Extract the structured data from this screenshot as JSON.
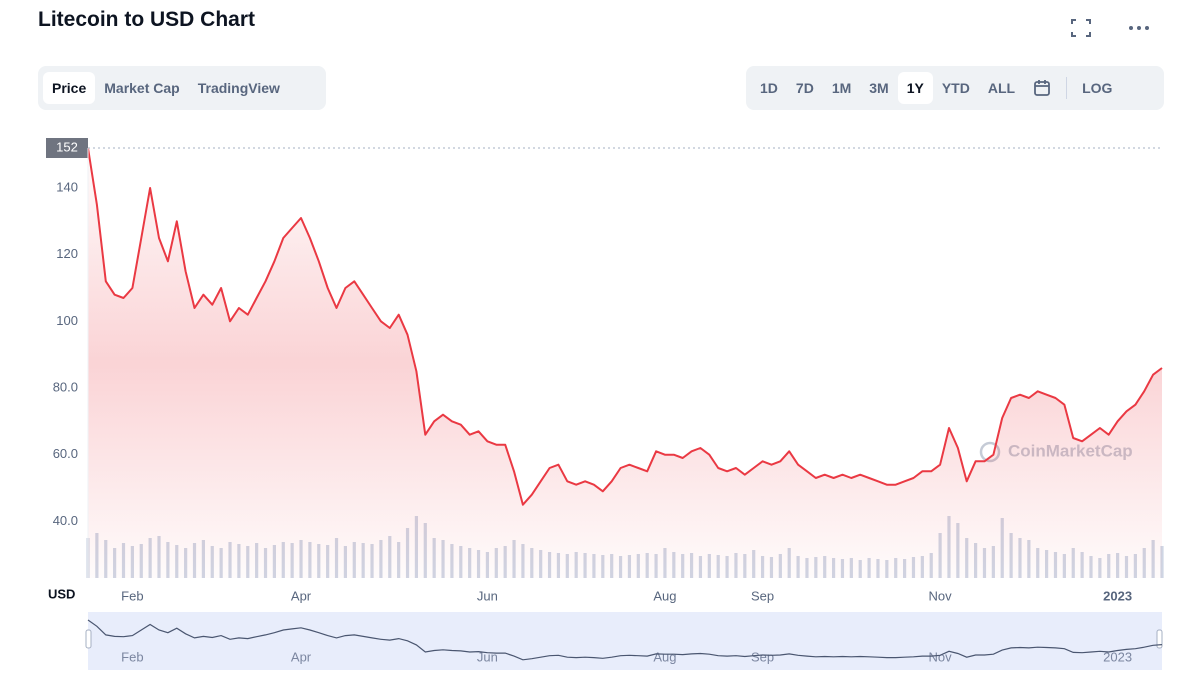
{
  "header": {
    "title": "Litecoin to USD Chart"
  },
  "tabs": [
    "Price",
    "Market Cap",
    "TradingView"
  ],
  "active_tab": 0,
  "ranges": [
    "1D",
    "7D",
    "1M",
    "3M",
    "1Y",
    "YTD",
    "ALL"
  ],
  "active_range": 4,
  "log_button": "LOG",
  "watermark": "CoinMarketCap",
  "chart_data": {
    "type": "line",
    "y_unit_label": "USD",
    "price_marker": 152,
    "ylim": [
      23,
      152
    ],
    "yticks": [
      {
        "value": 40,
        "label": "40.0"
      },
      {
        "value": 60,
        "label": "60.0"
      },
      {
        "value": 80,
        "label": "80.0"
      },
      100,
      120,
      140
    ],
    "categories": [
      null,
      null,
      null,
      null,
      null,
      "Feb",
      null,
      null,
      null,
      null,
      null,
      null,
      null,
      null,
      null,
      null,
      null,
      null,
      null,
      null,
      null,
      null,
      null,
      null,
      "Apr",
      null,
      null,
      null,
      null,
      null,
      null,
      null,
      null,
      null,
      null,
      null,
      null,
      null,
      null,
      null,
      null,
      null,
      null,
      null,
      null,
      "Jun",
      null,
      null,
      null,
      null,
      null,
      null,
      null,
      null,
      null,
      null,
      null,
      null,
      null,
      null,
      null,
      null,
      null,
      null,
      null,
      "Aug",
      null,
      null,
      null,
      null,
      null,
      null,
      null,
      null,
      null,
      null,
      "Sep",
      null,
      null,
      null,
      null,
      null,
      null,
      null,
      null,
      null,
      null,
      null,
      null,
      null,
      null,
      null,
      null,
      null,
      null,
      null,
      "Nov",
      null,
      null,
      null,
      null,
      null,
      null,
      null,
      null,
      null,
      null,
      null,
      null,
      null,
      null,
      null,
      null,
      null,
      null,
      null,
      "2023",
      null,
      null,
      null,
      null,
      null
    ],
    "series": [
      {
        "name": "Price",
        "color": "#ea3943",
        "values": [
          152,
          135,
          112,
          108,
          107,
          110,
          125,
          140,
          125,
          118,
          130,
          115,
          104,
          108,
          105,
          110,
          100,
          104,
          102,
          107,
          112,
          118,
          125,
          128,
          131,
          125,
          118,
          110,
          104,
          110,
          112,
          108,
          104,
          100,
          98,
          102,
          96,
          85,
          66,
          70,
          72,
          70,
          69,
          66,
          67,
          64,
          63,
          63,
          55,
          45,
          48,
          52,
          56,
          57,
          52,
          51,
          52,
          51,
          49,
          52,
          56,
          57,
          56,
          55,
          61,
          60,
          60,
          59,
          61,
          62,
          60,
          56,
          55,
          56,
          54,
          56,
          58,
          57,
          58,
          61,
          57,
          55,
          53,
          54,
          53,
          54,
          53,
          54,
          53,
          52,
          51,
          51,
          52,
          53,
          55,
          55,
          57,
          68,
          62,
          52,
          58,
          58,
          60,
          71,
          77,
          78,
          77,
          79,
          78,
          77,
          75,
          65,
          64,
          66,
          68,
          66,
          70,
          73,
          75,
          79,
          84,
          86
        ]
      },
      {
        "name": "Volume",
        "color": "#cfd6e4",
        "values": [
          40,
          45,
          38,
          30,
          35,
          32,
          34,
          40,
          42,
          36,
          33,
          30,
          35,
          38,
          32,
          30,
          36,
          34,
          32,
          35,
          30,
          33,
          36,
          35,
          38,
          36,
          34,
          33,
          40,
          32,
          36,
          35,
          34,
          38,
          42,
          36,
          50,
          62,
          55,
          40,
          38,
          34,
          32,
          30,
          28,
          26,
          30,
          32,
          38,
          34,
          30,
          28,
          26,
          25,
          24,
          26,
          25,
          24,
          23,
          24,
          22,
          23,
          24,
          25,
          24,
          30,
          26,
          24,
          25,
          22,
          24,
          23,
          22,
          25,
          24,
          28,
          22,
          21,
          24,
          30,
          22,
          20,
          21,
          22,
          20,
          19,
          20,
          18,
          20,
          19,
          18,
          20,
          19,
          21,
          22,
          25,
          45,
          62,
          55,
          40,
          35,
          30,
          32,
          60,
          45,
          40,
          38,
          30,
          28,
          26,
          24,
          30,
          26,
          22,
          20,
          24,
          25,
          22,
          24,
          30,
          38,
          32
        ]
      }
    ]
  }
}
